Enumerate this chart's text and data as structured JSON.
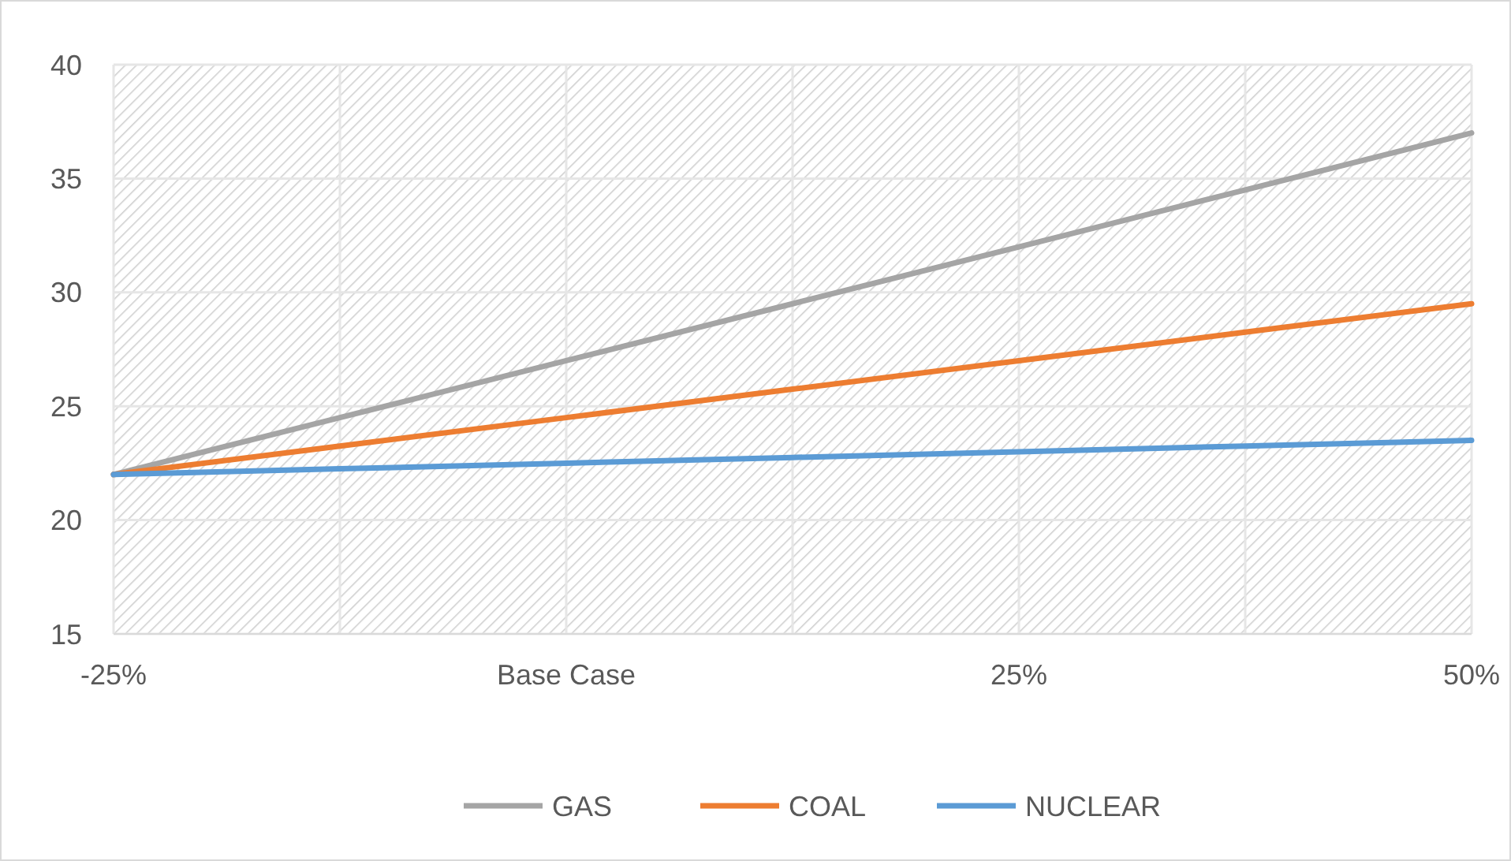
{
  "chart_data": {
    "type": "line",
    "categories": [
      "-25%",
      null,
      "Base Case",
      null,
      "25%",
      null,
      "50%"
    ],
    "series": [
      {
        "name": "GAS",
        "color": "#a5a5a5",
        "values": [
          22,
          24.5,
          27,
          29.5,
          32,
          34.5,
          37
        ]
      },
      {
        "name": "COAL",
        "color": "#ed7d31",
        "values": [
          22,
          23.25,
          24.5,
          25.75,
          27,
          28.25,
          29.5
        ]
      },
      {
        "name": "NUCLEAR",
        "color": "#5b9bd5",
        "values": [
          22,
          22.25,
          22.5,
          22.75,
          23,
          23.25,
          23.5
        ]
      }
    ],
    "ylim": [
      15,
      40
    ],
    "yticks": [
      15,
      20,
      25,
      30,
      35,
      40
    ],
    "grid": true,
    "legend": "bottom",
    "marker": "none",
    "line_style": "solid"
  }
}
